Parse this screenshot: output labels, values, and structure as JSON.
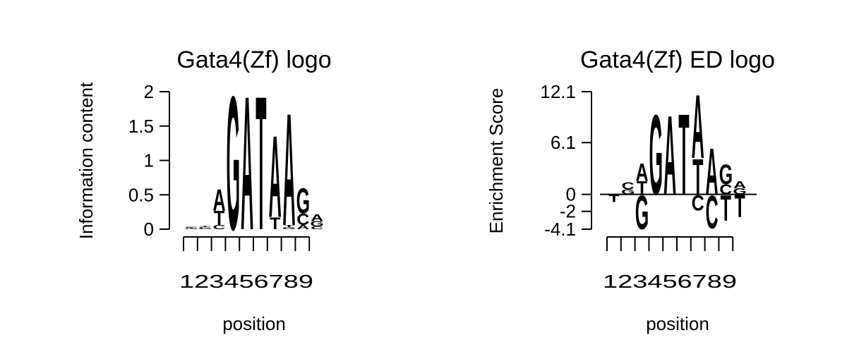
{
  "colors": {
    "A": "#00ee00",
    "C": "#0000ee",
    "G": "#ffa500",
    "T": "#ff0000",
    "axis": "#000000"
  },
  "chart_data": [
    {
      "type": "sequence-logo",
      "title": "Gata4(Zf) logo",
      "xlabel": "position",
      "ylabel": "Information content",
      "ylim": [
        0,
        2
      ],
      "yticks": [
        {
          "value": 0,
          "label": "0"
        },
        {
          "value": 0.5,
          "label": "0.5"
        },
        {
          "value": 1,
          "label": "1"
        },
        {
          "value": 1.5,
          "label": "1.5"
        },
        {
          "value": 2,
          "label": "2"
        }
      ],
      "xtick_text": "123456789",
      "n_positions": 10,
      "baseline": false,
      "positions": [
        {
          "pos": 1,
          "stack": [
            {
              "letter": "G",
              "value": 0.01
            },
            {
              "letter": "T",
              "value": 0.01
            },
            {
              "letter": "C",
              "value": 0.01
            }
          ]
        },
        {
          "pos": 2,
          "stack": [
            {
              "letter": "G",
              "value": 0.02
            },
            {
              "letter": "C",
              "value": 0.01
            },
            {
              "letter": "T",
              "value": 0.01
            }
          ]
        },
        {
          "pos": 3,
          "stack": [
            {
              "letter": "C",
              "value": 0.06
            },
            {
              "letter": "T",
              "value": 0.21
            },
            {
              "letter": "A",
              "value": 0.32
            }
          ]
        },
        {
          "pos": 4,
          "stack": [
            {
              "letter": "G",
              "value": 2.0
            }
          ]
        },
        {
          "pos": 5,
          "stack": [
            {
              "letter": "A",
              "value": 2.0
            }
          ]
        },
        {
          "pos": 6,
          "stack": [
            {
              "letter": "T",
              "value": 2.0
            }
          ]
        },
        {
          "pos": 7,
          "stack": [
            {
              "letter": "T",
              "value": 0.18
            },
            {
              "letter": "A",
              "value": 1.22
            }
          ]
        },
        {
          "pos": 8,
          "stack": [
            {
              "letter": "G",
              "value": 0.03
            },
            {
              "letter": "T",
              "value": 0.03
            },
            {
              "letter": "A",
              "value": 1.68
            }
          ]
        },
        {
          "pos": 9,
          "stack": [
            {
              "letter": "A",
              "value": 0.06
            },
            {
              "letter": "C",
              "value": 0.17
            },
            {
              "letter": "G",
              "value": 0.38
            }
          ]
        },
        {
          "pos": 10,
          "stack": [
            {
              "letter": "C",
              "value": 0.04
            },
            {
              "letter": "G",
              "value": 0.08
            },
            {
              "letter": "A",
              "value": 0.1
            }
          ]
        }
      ]
    },
    {
      "type": "sequence-logo",
      "title": "Gata4(Zf) ED logo",
      "xlabel": "position",
      "ylabel": "Enrichment Score",
      "ylim": [
        -4.1,
        12.1
      ],
      "yticks": [
        {
          "value": -4.1,
          "label": "-4.1"
        },
        {
          "value": -2,
          "label": "-2"
        },
        {
          "value": 0,
          "label": "0"
        },
        {
          "value": 6.1,
          "label": "6.1"
        },
        {
          "value": 12.1,
          "label": "12.1"
        }
      ],
      "xtick_text": "123456789",
      "n_positions": 10,
      "baseline": true,
      "positions": [
        {
          "pos": 1,
          "stack": [
            {
              "letter": "T",
              "value": -0.9
            }
          ]
        },
        {
          "pos": 2,
          "stack": [
            {
              "letter": "G",
              "value": 0.6
            },
            {
              "letter": "C",
              "value": 0.9
            }
          ]
        },
        {
          "pos": 3,
          "stack": [
            {
              "letter": "T",
              "value": 1.6
            },
            {
              "letter": "A",
              "value": 2.1
            },
            {
              "letter": "G",
              "value": -4.1
            }
          ]
        },
        {
          "pos": 4,
          "stack": [
            {
              "letter": "G",
              "value": 9.7
            }
          ]
        },
        {
          "pos": 5,
          "stack": [
            {
              "letter": "A",
              "value": 9.6
            }
          ]
        },
        {
          "pos": 6,
          "stack": [
            {
              "letter": "T",
              "value": 9.8
            }
          ]
        },
        {
          "pos": 7,
          "stack": [
            {
              "letter": "T",
              "value": 4.3
            },
            {
              "letter": "A",
              "value": 7.7
            },
            {
              "letter": "C",
              "value": -1.9
            }
          ]
        },
        {
          "pos": 8,
          "stack": [
            {
              "letter": "A",
              "value": 5.6
            },
            {
              "letter": "C",
              "value": -4.0
            }
          ]
        },
        {
          "pos": 9,
          "stack": [
            {
              "letter": "C",
              "value": 1.2
            },
            {
              "letter": "G",
              "value": 2.4
            },
            {
              "letter": "T",
              "value": -3.1
            }
          ]
        },
        {
          "pos": 10,
          "stack": [
            {
              "letter": "G",
              "value": 0.7
            },
            {
              "letter": "A",
              "value": 0.9
            },
            {
              "letter": "T",
              "value": -2.7
            }
          ]
        }
      ]
    }
  ]
}
